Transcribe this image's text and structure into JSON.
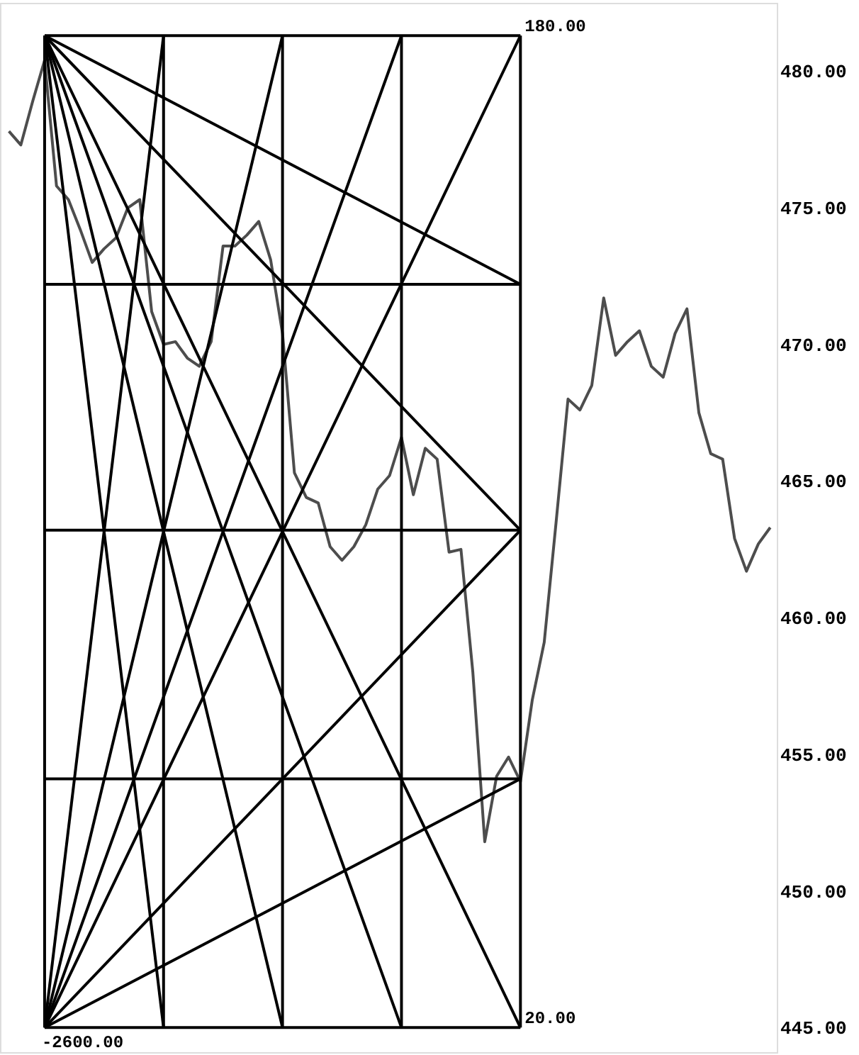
{
  "chart_data": {
    "type": "line",
    "categories": [
      null,
      null,
      null,
      null,
      null,
      null,
      null,
      null,
      null,
      null,
      null,
      null,
      null,
      null,
      null,
      null,
      null,
      null,
      null,
      null,
      null,
      null,
      null,
      null,
      null,
      null,
      null,
      null,
      null,
      null,
      null,
      null,
      null,
      null,
      null,
      null,
      null,
      null,
      null,
      null,
      null,
      null,
      null,
      null,
      null,
      null,
      null,
      null,
      null,
      null,
      null,
      null,
      null,
      null,
      null,
      null,
      null,
      null,
      null,
      null,
      null,
      null,
      null,
      null,
      null
    ],
    "ylim": [
      444.1,
      482.5
    ],
    "yticks": [
      {
        "value": 445,
        "label": "445.00"
      },
      {
        "value": 450,
        "label": "450.00"
      },
      {
        "value": 455,
        "label": "455.00"
      },
      {
        "value": 460,
        "label": "460.00"
      },
      {
        "value": 465,
        "label": "465.00"
      },
      {
        "value": 470,
        "label": "470.00"
      },
      {
        "value": 475,
        "label": "475.00"
      },
      {
        "value": 480,
        "label": "480.00"
      }
    ],
    "tick_labels": "y",
    "grid": false,
    "marker": "none",
    "line_style": "solid",
    "annotations": [
      "180.00",
      "20.00",
      "-2600.00"
    ],
    "series": [
      {
        "color": "#4d4d4d",
        "values": [
          477.8,
          477.3,
          478.9,
          480.4,
          475.8,
          475.3,
          474.2,
          473.0,
          473.5,
          473.9,
          475.0,
          475.3,
          471.2,
          470.0,
          470.1,
          469.5,
          469.2,
          470.1,
          473.6,
          473.6,
          474.0,
          474.5,
          473.1,
          470.4,
          465.3,
          464.4,
          464.2,
          462.6,
          462.1,
          462.6,
          463.4,
          464.7,
          465.2,
          466.6,
          464.5,
          466.2,
          465.8,
          462.4,
          462.5,
          458.0,
          451.8,
          454.2,
          454.9,
          454.0,
          457.0,
          459.1,
          463.5,
          468.0,
          467.6,
          468.5,
          471.7,
          469.6,
          470.1,
          470.5,
          469.2,
          468.8,
          470.4,
          471.3,
          467.5,
          466.0,
          465.8,
          462.9,
          461.7,
          462.7,
          463.3
        ]
      },
      {
        "color": "#000000",
        "values": [
          null,
          null,
          null,
          481.3,
          null,
          null,
          null,
          null,
          null,
          null,
          null,
          null,
          null,
          null,
          null,
          null,
          null,
          null,
          null,
          null,
          null,
          null,
          null,
          null,
          null,
          null,
          null,
          null,
          null,
          null,
          null,
          null,
          null,
          null,
          null,
          null,
          null,
          null,
          null,
          null,
          null,
          null,
          null,
          481.3,
          null,
          null,
          null,
          null,
          null,
          null,
          null,
          null,
          null,
          null,
          null,
          null,
          null,
          null,
          null,
          null,
          null,
          null,
          null,
          null,
          null
        ]
      },
      {
        "color": "#000000",
        "values": [
          null,
          null,
          null,
          472.2,
          null,
          null,
          null,
          null,
          null,
          null,
          null,
          null,
          null,
          null,
          null,
          null,
          null,
          null,
          null,
          null,
          null,
          null,
          null,
          null,
          null,
          null,
          null,
          null,
          null,
          null,
          null,
          null,
          null,
          null,
          null,
          null,
          null,
          null,
          null,
          null,
          null,
          null,
          null,
          472.2,
          null,
          null,
          null,
          null,
          null,
          null,
          null,
          null,
          null,
          null,
          null,
          null,
          null,
          null,
          null,
          null,
          null,
          null,
          null,
          null,
          null
        ]
      },
      {
        "color": "#000000",
        "values": [
          null,
          null,
          null,
          463.2,
          null,
          null,
          null,
          null,
          null,
          null,
          null,
          null,
          null,
          null,
          null,
          null,
          null,
          null,
          null,
          null,
          null,
          null,
          null,
          null,
          null,
          null,
          null,
          null,
          null,
          null,
          null,
          null,
          null,
          null,
          null,
          null,
          null,
          null,
          null,
          null,
          null,
          null,
          null,
          463.2,
          null,
          null,
          null,
          null,
          null,
          null,
          null,
          null,
          null,
          null,
          null,
          null,
          null,
          null,
          null,
          null,
          null,
          null,
          null,
          null,
          null
        ]
      },
      {
        "color": "#000000",
        "values": [
          null,
          null,
          null,
          454.1,
          null,
          null,
          null,
          null,
          null,
          null,
          null,
          null,
          null,
          null,
          null,
          null,
          null,
          null,
          null,
          null,
          null,
          null,
          null,
          null,
          null,
          null,
          null,
          null,
          null,
          null,
          null,
          null,
          null,
          null,
          null,
          null,
          null,
          null,
          null,
          null,
          null,
          null,
          null,
          454.1,
          null,
          null,
          null,
          null,
          null,
          null,
          null,
          null,
          null,
          null,
          null,
          null,
          null,
          null,
          null,
          null,
          null,
          null,
          null,
          null,
          null
        ]
      },
      {
        "color": "#000000",
        "values": [
          null,
          null,
          null,
          445.0,
          null,
          null,
          null,
          null,
          null,
          null,
          null,
          null,
          null,
          null,
          null,
          null,
          null,
          null,
          null,
          null,
          null,
          null,
          null,
          null,
          null,
          null,
          null,
          null,
          null,
          null,
          null,
          null,
          null,
          null,
          null,
          null,
          null,
          null,
          null,
          null,
          null,
          null,
          null,
          445.0,
          null,
          null,
          null,
          null,
          null,
          null,
          null,
          null,
          null,
          null,
          null,
          null,
          null,
          null,
          null,
          null,
          null,
          null,
          null,
          null,
          null
        ]
      },
      {
        "color": "#000000",
        "values": [
          null,
          null,
          null,
          481.3,
          null,
          null,
          null,
          null,
          null,
          null,
          null,
          null,
          null,
          null,
          null,
          null,
          null,
          null,
          null,
          null,
          null,
          null,
          null,
          null,
          null,
          null,
          null,
          null,
          null,
          null,
          null,
          null,
          null,
          null,
          null,
          null,
          null,
          null,
          null,
          null,
          null,
          null,
          null,
          472.2,
          null,
          null,
          null,
          null,
          null,
          null,
          null,
          null,
          null,
          null,
          null,
          null,
          null,
          null,
          null,
          null,
          null,
          null,
          null,
          null,
          null
        ]
      },
      {
        "color": "#000000",
        "values": [
          null,
          null,
          null,
          481.3,
          null,
          null,
          null,
          null,
          null,
          null,
          null,
          null,
          null,
          null,
          null,
          null,
          null,
          null,
          null,
          null,
          null,
          null,
          null,
          null,
          null,
          null,
          null,
          null,
          null,
          null,
          null,
          null,
          null,
          null,
          null,
          null,
          null,
          null,
          null,
          null,
          null,
          null,
          null,
          463.2,
          null,
          null,
          null,
          null,
          null,
          null,
          null,
          null,
          null,
          null,
          null,
          null,
          null,
          null,
          null,
          null,
          null,
          null,
          null,
          null,
          null
        ]
      },
      {
        "color": "#000000",
        "values": [
          null,
          null,
          null,
          481.3,
          null,
          null,
          null,
          null,
          null,
          null,
          null,
          null,
          null,
          null,
          null,
          null,
          null,
          null,
          null,
          null,
          null,
          null,
          null,
          null,
          null,
          null,
          null,
          null,
          null,
          null,
          null,
          null,
          null,
          null,
          null,
          null,
          null,
          null,
          null,
          null,
          null,
          null,
          null,
          445.0,
          null,
          null,
          null,
          null,
          null,
          null,
          null,
          null,
          null,
          null,
          null,
          null,
          null,
          null,
          null,
          null,
          null,
          null,
          null,
          null,
          null
        ]
      },
      {
        "color": "#000000",
        "values": [
          null,
          null,
          null,
          481.3,
          null,
          null,
          null,
          null,
          null,
          null,
          null,
          null,
          null,
          null,
          null,
          null,
          null,
          null,
          null,
          null,
          null,
          null,
          null,
          null,
          null,
          null,
          null,
          null,
          null,
          null,
          null,
          null,
          null,
          445.0,
          null,
          null,
          null,
          null,
          null,
          null,
          null,
          null,
          null,
          null,
          null,
          null,
          null,
          null,
          null,
          null,
          null,
          null,
          null,
          null,
          null,
          null,
          null,
          null,
          null,
          null,
          null,
          null,
          null,
          null,
          null
        ]
      },
      {
        "color": "#000000",
        "values": [
          null,
          null,
          null,
          481.3,
          null,
          null,
          null,
          null,
          null,
          null,
          null,
          null,
          null,
          null,
          null,
          null,
          null,
          null,
          null,
          null,
          null,
          null,
          null,
          445.0,
          null,
          null,
          null,
          null,
          null,
          null,
          null,
          null,
          null,
          null,
          null,
          null,
          null,
          null,
          null,
          null,
          null,
          null,
          null,
          null,
          null,
          null,
          null,
          null,
          null,
          null,
          null,
          null,
          null,
          null,
          null,
          null,
          null,
          null,
          null,
          null,
          null,
          null,
          null,
          null,
          null
        ]
      },
      {
        "color": "#000000",
        "values": [
          null,
          null,
          null,
          481.3,
          null,
          null,
          null,
          null,
          null,
          null,
          null,
          null,
          null,
          445.0,
          null,
          null,
          null,
          null,
          null,
          null,
          null,
          null,
          null,
          null,
          null,
          null,
          null,
          null,
          null,
          null,
          null,
          null,
          null,
          null,
          null,
          null,
          null,
          null,
          null,
          null,
          null,
          null,
          null,
          null,
          null,
          null,
          null,
          null,
          null,
          null,
          null,
          null,
          null,
          null,
          null,
          null,
          null,
          null,
          null,
          null,
          null,
          null,
          null,
          null,
          null
        ]
      },
      {
        "color": "#000000",
        "values": [
          null,
          null,
          null,
          445.0,
          null,
          null,
          null,
          null,
          null,
          null,
          null,
          null,
          null,
          null,
          null,
          null,
          null,
          null,
          null,
          null,
          null,
          null,
          null,
          null,
          null,
          null,
          null,
          null,
          null,
          null,
          null,
          null,
          null,
          null,
          null,
          null,
          null,
          null,
          null,
          null,
          null,
          null,
          null,
          454.1,
          null,
          null,
          null,
          null,
          null,
          null,
          null,
          null,
          null,
          null,
          null,
          null,
          null,
          null,
          null,
          null,
          null,
          null,
          null,
          null,
          null
        ]
      },
      {
        "color": "#000000",
        "values": [
          null,
          null,
          null,
          445.0,
          null,
          null,
          null,
          null,
          null,
          null,
          null,
          null,
          null,
          null,
          null,
          null,
          null,
          null,
          null,
          null,
          null,
          null,
          null,
          null,
          null,
          null,
          null,
          null,
          null,
          null,
          null,
          null,
          null,
          null,
          null,
          null,
          null,
          null,
          null,
          null,
          null,
          null,
          null,
          463.2,
          null,
          null,
          null,
          null,
          null,
          null,
          null,
          null,
          null,
          null,
          null,
          null,
          null,
          null,
          null,
          null,
          null,
          null,
          null,
          null,
          null
        ]
      },
      {
        "color": "#000000",
        "values": [
          null,
          null,
          null,
          445.0,
          null,
          null,
          null,
          null,
          null,
          null,
          null,
          null,
          null,
          null,
          null,
          null,
          null,
          null,
          null,
          null,
          null,
          null,
          null,
          null,
          null,
          null,
          null,
          null,
          null,
          null,
          null,
          null,
          null,
          null,
          null,
          null,
          null,
          null,
          null,
          null,
          null,
          null,
          null,
          481.3,
          null,
          null,
          null,
          null,
          null,
          null,
          null,
          null,
          null,
          null,
          null,
          null,
          null,
          null,
          null,
          null,
          null,
          null,
          null,
          null,
          null
        ]
      },
      {
        "color": "#000000",
        "values": [
          null,
          null,
          null,
          445.0,
          null,
          null,
          null,
          null,
          null,
          null,
          null,
          null,
          null,
          null,
          null,
          null,
          null,
          null,
          null,
          null,
          null,
          null,
          null,
          null,
          null,
          null,
          null,
          null,
          null,
          null,
          null,
          null,
          null,
          481.3,
          null,
          null,
          null,
          null,
          null,
          null,
          null,
          null,
          null,
          null,
          null,
          null,
          null,
          null,
          null,
          null,
          null,
          null,
          null,
          null,
          null,
          null,
          null,
          null,
          null,
          null,
          null,
          null,
          null,
          null,
          null
        ]
      },
      {
        "color": "#000000",
        "values": [
          null,
          null,
          null,
          445.0,
          null,
          null,
          null,
          null,
          null,
          null,
          null,
          null,
          null,
          null,
          null,
          null,
          null,
          null,
          null,
          null,
          null,
          null,
          null,
          481.3,
          null,
          null,
          null,
          null,
          null,
          null,
          null,
          null,
          null,
          null,
          null,
          null,
          null,
          null,
          null,
          null,
          null,
          null,
          null,
          null,
          null,
          null,
          null,
          null,
          null,
          null,
          null,
          null,
          null,
          null,
          null,
          null,
          null,
          null,
          null,
          null,
          null,
          null,
          null,
          null,
          null
        ]
      },
      {
        "color": "#000000",
        "values": [
          null,
          null,
          null,
          445.0,
          null,
          null,
          null,
          null,
          null,
          null,
          null,
          null,
          null,
          481.3,
          null,
          null,
          null,
          null,
          null,
          null,
          null,
          null,
          null,
          null,
          null,
          null,
          null,
          null,
          null,
          null,
          null,
          null,
          null,
          null,
          null,
          null,
          null,
          null,
          null,
          null,
          null,
          null,
          null,
          null,
          null,
          null,
          null,
          null,
          null,
          null,
          null,
          null,
          null,
          null,
          null,
          null,
          null,
          null,
          null,
          null,
          null,
          null,
          null,
          null,
          null
        ]
      }
    ]
  }
}
